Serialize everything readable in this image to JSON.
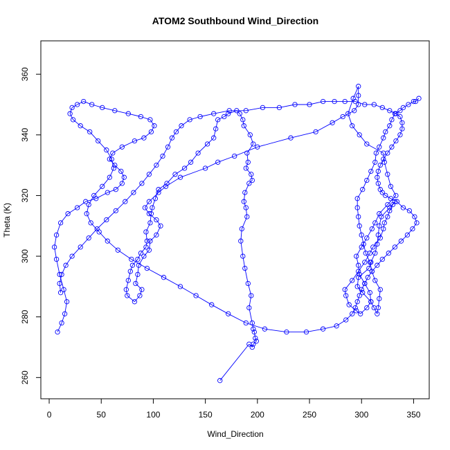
{
  "chart_data": {
    "type": "line",
    "title": "ATOM2 Southbound Wind_Direction",
    "xlabel": "Wind_Direction",
    "ylabel": "Theta (K)",
    "xlim": [
      -8,
      365
    ],
    "ylim": [
      253,
      371
    ],
    "x_ticks": [
      0,
      50,
      100,
      150,
      200,
      250,
      300,
      350
    ],
    "y_ticks": [
      260,
      280,
      300,
      320,
      340,
      360
    ],
    "marker": "open-circle",
    "grid": false,
    "legend": "none",
    "colors": {
      "series": "#0000ff",
      "axes": "#000000",
      "background": "#ffffff"
    },
    "series": [
      {
        "x": [
          164,
          192,
          195,
          196,
          199,
          198,
          197,
          196,
          195,
          192,
          194,
          191,
          188,
          186,
          184,
          185,
          190,
          189,
          187,
          188,
          192,
          195,
          194,
          189,
          191,
          190,
          196,
          193,
          187,
          186,
          183,
          180,
          172,
          168,
          162,
          160,
          158,
          152,
          143,
          136,
          130,
          121,
          113,
          105,
          102,
          99,
          98,
          97,
          93,
          94,
          93,
          88,
          85,
          80,
          78,
          76,
          74,
          75,
          82,
          87,
          89,
          83,
          85,
          86,
          91,
          96,
          97,
          103,
          107,
          103,
          96,
          92,
          96,
          105,
          112,
          126,
          150,
          162,
          178,
          200,
          232,
          256,
          272,
          282,
          293,
          297,
          297,
          297,
          292,
          287,
          291,
          298,
          305,
          321,
          322,
          325,
          328,
          333,
          325,
          317,
          313,
          310,
          305,
          300,
          295,
          297,
          298,
          303,
          308,
          309,
          305,
          299,
          295,
          288,
          285,
          284,
          291,
          297,
          303,
          308,
          311,
          318,
          321,
          322,
          325,
          327,
          330,
          332,
          327,
          319,
          317,
          316,
          315,
          313,
          309,
          307,
          297,
          296,
          301,
          309,
          312,
          315,
          316,
          317,
          318,
          313,
          310,
          308,
          304,
          302,
          300,
          298,
          297,
          296,
          296,
          301,
          305,
          309,
          313,
          314,
          317,
          321,
          323,
          327,
          329,
          332,
          337,
          340,
          345,
          350,
          352,
          355
        ],
        "y": [
          259,
          271,
          270,
          271,
          272,
          273,
          275,
          276,
          278,
          283,
          287,
          291,
          296,
          300,
          305,
          309,
          313,
          316,
          318,
          321,
          324,
          325,
          327,
          329,
          331,
          334,
          337,
          340,
          343,
          345,
          347,
          348,
          347,
          346,
          345,
          342,
          339,
          337,
          334,
          331,
          329,
          327,
          324,
          322,
          319,
          316,
          314,
          311,
          308,
          305,
          303,
          301,
          299,
          297,
          295,
          292,
          289,
          287,
          285,
          287,
          289,
          291,
          294,
          297,
          300,
          302,
          305,
          307,
          310,
          312,
          314,
          316,
          318,
          321,
          323,
          326,
          329,
          331,
          333,
          336,
          339,
          341,
          344,
          346,
          348,
          350,
          353,
          356,
          352,
          347,
          343,
          340,
          337,
          334,
          331,
          327,
          323,
          320,
          317,
          314,
          311,
          309,
          306,
          303,
          300,
          297,
          294,
          291,
          288,
          285,
          283,
          281,
          282,
          284,
          287,
          289,
          292,
          295,
          298,
          301,
          303,
          306,
          309,
          311,
          313,
          315,
          317,
          318,
          316,
          313,
          310,
          307,
          304,
          301,
          298,
          296,
          293,
          290,
          288,
          285,
          283,
          281,
          283,
          286,
          289,
          292,
          295,
          298,
          301,
          304,
          307,
          310,
          313,
          316,
          319,
          322,
          325,
          328,
          331,
          334,
          336,
          339,
          341,
          343,
          345,
          347,
          348,
          349,
          350,
          351,
          351,
          352
        ]
      },
      {
        "x": [
          8,
          12,
          15,
          17,
          14,
          10,
          7,
          5,
          7,
          11,
          18,
          27,
          35,
          45,
          56,
          64,
          70,
          72,
          69,
          63,
          58,
          61,
          70,
          82,
          91,
          98,
          101,
          97,
          88,
          76,
          63,
          51,
          41,
          33,
          27,
          22,
          20,
          23,
          30,
          39,
          47,
          55,
          60,
          62,
          58,
          51,
          43,
          38,
          36,
          40,
          48,
          56,
          66,
          79,
          94,
          110,
          126,
          141,
          156,
          172,
          189,
          207,
          228,
          247,
          263,
          276,
          285,
          291,
          294,
          296,
          298,
          300,
          303,
          306,
          310,
          315,
          320,
          326,
          332,
          338,
          344,
          349,
          353,
          351,
          346,
          340,
          334,
          328,
          323,
          320,
          318,
          316,
          315,
          316,
          318,
          321,
          325,
          329,
          333,
          337,
          339,
          339,
          337,
          333,
          327,
          320,
          312,
          303,
          294,
          284,
          274,
          263,
          250,
          236,
          221,
          205,
          189,
          173,
          158,
          145,
          135,
          127,
          122,
          118,
          114,
          109,
          103,
          96,
          89,
          81,
          73,
          64,
          55,
          46,
          38,
          30,
          22,
          16,
          12,
          10,
          11
        ],
        "y": [
          275,
          278,
          281,
          285,
          289,
          294,
          299,
          303,
          307,
          311,
          314,
          316,
          318,
          319,
          321,
          322,
          324,
          326,
          328,
          330,
          332,
          334,
          336,
          338,
          339,
          341,
          343,
          345,
          346,
          347,
          348,
          349,
          350,
          351,
          350,
          349,
          347,
          345,
          343,
          341,
          338,
          335,
          332,
          329,
          326,
          323,
          320,
          317,
          314,
          311,
          308,
          305,
          302,
          299,
          296,
          293,
          290,
          287,
          284,
          281,
          278,
          276,
          275,
          275,
          276,
          277,
          279,
          281,
          283,
          285,
          287,
          289,
          291,
          293,
          295,
          297,
          299,
          301,
          303,
          305,
          307,
          309,
          311,
          313,
          315,
          316,
          318,
          319,
          320,
          321,
          322,
          324,
          326,
          328,
          330,
          332,
          334,
          336,
          338,
          340,
          342,
          344,
          346,
          347,
          348,
          349,
          350,
          350,
          351,
          351,
          351,
          351,
          350,
          350,
          349,
          349,
          348,
          348,
          347,
          346,
          345,
          343,
          341,
          339,
          336,
          333,
          330,
          327,
          324,
          321,
          318,
          315,
          312,
          309,
          306,
          303,
          300,
          297,
          294,
          291,
          288
        ]
      }
    ]
  }
}
